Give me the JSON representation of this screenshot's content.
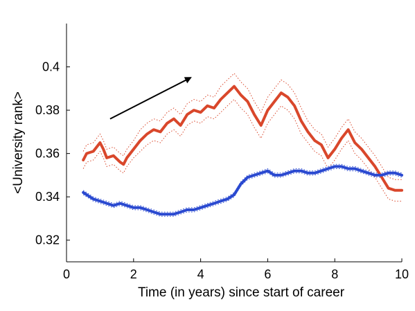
{
  "chart_data": {
    "type": "line",
    "xlabel": "Time (in years) since start of career",
    "ylabel": "<University rank>",
    "xlim": [
      0,
      10
    ],
    "ylim": [
      0.31,
      0.42
    ],
    "xticks": [
      0,
      2,
      4,
      6,
      8,
      10
    ],
    "yticks": [
      0.32,
      0.34,
      0.36,
      0.38,
      0.4
    ],
    "xtick_labels": [
      "0",
      "2",
      "4",
      "6",
      "8",
      "10"
    ],
    "ytick_labels": [
      "0.32",
      "0.34",
      "0.36",
      "0.38",
      "0.4"
    ],
    "grid": false,
    "annotation": {
      "type": "arrow",
      "from": [
        1.3,
        0.376
      ],
      "to": [
        3.7,
        0.395
      ]
    },
    "series": [
      {
        "color": "#d9472b",
        "band": "dotted",
        "x": [
          0.5,
          0.6,
          0.8,
          1.0,
          1.1,
          1.2,
          1.4,
          1.6,
          1.7,
          1.8,
          2.0,
          2.2,
          2.4,
          2.6,
          2.8,
          3.0,
          3.2,
          3.4,
          3.6,
          3.8,
          4.0,
          4.2,
          4.4,
          4.6,
          4.8,
          5.0,
          5.2,
          5.4,
          5.6,
          5.8,
          6.0,
          6.2,
          6.4,
          6.6,
          6.8,
          7.0,
          7.2,
          7.4,
          7.6,
          7.8,
          8.0,
          8.2,
          8.4,
          8.6,
          8.8,
          9.0,
          9.2,
          9.4,
          9.6,
          9.8,
          10.0
        ],
        "y": [
          0.357,
          0.36,
          0.361,
          0.365,
          0.362,
          0.358,
          0.359,
          0.356,
          0.355,
          0.358,
          0.362,
          0.366,
          0.369,
          0.371,
          0.37,
          0.374,
          0.376,
          0.373,
          0.378,
          0.38,
          0.379,
          0.382,
          0.381,
          0.385,
          0.388,
          0.391,
          0.387,
          0.384,
          0.378,
          0.373,
          0.38,
          0.384,
          0.388,
          0.386,
          0.382,
          0.375,
          0.37,
          0.366,
          0.364,
          0.358,
          0.362,
          0.367,
          0.371,
          0.365,
          0.362,
          0.358,
          0.354,
          0.349,
          0.344,
          0.343,
          0.343
        ],
        "band_half_width": [
          0.004,
          0.004,
          0.004,
          0.004,
          0.004,
          0.004,
          0.004,
          0.004,
          0.004,
          0.004,
          0.004,
          0.005,
          0.005,
          0.005,
          0.005,
          0.005,
          0.005,
          0.005,
          0.005,
          0.005,
          0.005,
          0.005,
          0.005,
          0.006,
          0.006,
          0.006,
          0.006,
          0.006,
          0.006,
          0.006,
          0.006,
          0.006,
          0.006,
          0.006,
          0.006,
          0.006,
          0.005,
          0.005,
          0.005,
          0.005,
          0.005,
          0.005,
          0.005,
          0.005,
          0.005,
          0.005,
          0.005,
          0.005,
          0.005,
          0.005,
          0.005
        ]
      },
      {
        "color": "#2a49d0",
        "band": "dotted",
        "x": [
          0.5,
          0.6,
          0.8,
          1.0,
          1.2,
          1.4,
          1.6,
          1.8,
          2.0,
          2.2,
          2.4,
          2.6,
          2.8,
          3.0,
          3.2,
          3.4,
          3.6,
          3.8,
          4.0,
          4.2,
          4.4,
          4.6,
          4.8,
          5.0,
          5.2,
          5.4,
          5.6,
          5.8,
          6.0,
          6.2,
          6.4,
          6.6,
          6.8,
          7.0,
          7.2,
          7.4,
          7.6,
          7.8,
          8.0,
          8.2,
          8.4,
          8.6,
          8.8,
          9.0,
          9.2,
          9.4,
          9.6,
          9.8,
          10.0
        ],
        "y": [
          0.342,
          0.341,
          0.339,
          0.338,
          0.337,
          0.336,
          0.337,
          0.336,
          0.335,
          0.335,
          0.334,
          0.333,
          0.332,
          0.332,
          0.332,
          0.333,
          0.334,
          0.334,
          0.335,
          0.336,
          0.337,
          0.338,
          0.339,
          0.341,
          0.346,
          0.349,
          0.35,
          0.351,
          0.352,
          0.35,
          0.35,
          0.351,
          0.352,
          0.352,
          0.351,
          0.351,
          0.352,
          0.353,
          0.354,
          0.354,
          0.353,
          0.353,
          0.352,
          0.351,
          0.35,
          0.35,
          0.351,
          0.351,
          0.35
        ],
        "band_half_width": [
          0.001,
          0.001,
          0.001,
          0.001,
          0.001,
          0.001,
          0.001,
          0.001,
          0.001,
          0.001,
          0.001,
          0.001,
          0.001,
          0.001,
          0.001,
          0.001,
          0.001,
          0.001,
          0.001,
          0.001,
          0.001,
          0.001,
          0.001,
          0.001,
          0.001,
          0.001,
          0.001,
          0.001,
          0.001,
          0.001,
          0.001,
          0.001,
          0.001,
          0.001,
          0.001,
          0.001,
          0.001,
          0.001,
          0.001,
          0.001,
          0.001,
          0.001,
          0.001,
          0.001,
          0.001,
          0.001,
          0.001,
          0.001,
          0.001
        ]
      }
    ]
  }
}
